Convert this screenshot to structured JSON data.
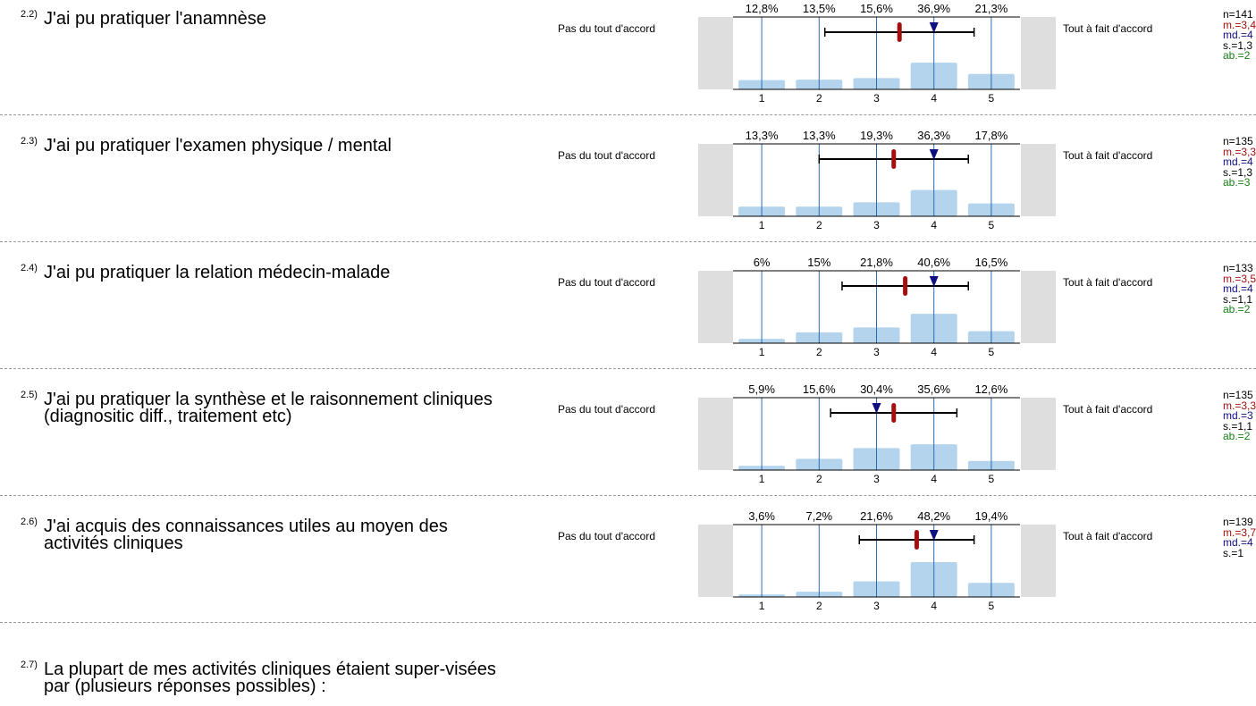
{
  "labels": {
    "left": "Pas du tout d'accord",
    "right": "Tout à fait d'accord"
  },
  "colors": {
    "bar": "#b4d4ee",
    "vline": "#2a6bb4",
    "mean": "#a30f0f",
    "median": "#0e0e7e",
    "abst": "#168016"
  },
  "chart_data": [
    {
      "type": "bar",
      "id": "2.2)",
      "title": "J'ai pu pratiquer l'anamnèse",
      "categories": [
        "1",
        "2",
        "3",
        "4",
        "5"
      ],
      "values": [
        12.8,
        13.5,
        15.6,
        36.9,
        21.3
      ],
      "value_labels": [
        "12,8%",
        "13,5%",
        "15,6%",
        "36,9%",
        "21,3%"
      ],
      "mean": 3.4,
      "median": 4,
      "sd": 1.3,
      "n": 141,
      "stats": {
        "n": "n=141",
        "m": "m.=3,4",
        "md": "md.=4",
        "s": "s.=1,3",
        "ab": "ab.=2"
      }
    },
    {
      "type": "bar",
      "id": "2.3)",
      "title": "J'ai pu pratiquer l'examen physique / mental",
      "categories": [
        "1",
        "2",
        "3",
        "4",
        "5"
      ],
      "values": [
        13.3,
        13.3,
        19.3,
        36.3,
        17.8
      ],
      "value_labels": [
        "13,3%",
        "13,3%",
        "19,3%",
        "36,3%",
        "17,8%"
      ],
      "mean": 3.3,
      "median": 4,
      "sd": 1.3,
      "n": 135,
      "stats": {
        "n": "n=135",
        "m": "m.=3,3",
        "md": "md.=4",
        "s": "s.=1,3",
        "ab": "ab.=3"
      }
    },
    {
      "type": "bar",
      "id": "2.4)",
      "title": "J'ai pu pratiquer la relation médecin-malade",
      "categories": [
        "1",
        "2",
        "3",
        "4",
        "5"
      ],
      "values": [
        6,
        15,
        21.8,
        40.6,
        16.5
      ],
      "value_labels": [
        "6%",
        "15%",
        "21,8%",
        "40,6%",
        "16,5%"
      ],
      "mean": 3.5,
      "median": 4,
      "sd": 1.1,
      "n": 133,
      "stats": {
        "n": "n=133",
        "m": "m.=3,5",
        "md": "md.=4",
        "s": "s.=1,1",
        "ab": "ab.=2"
      }
    },
    {
      "type": "bar",
      "id": "2.5)",
      "title": "J'ai pu pratiquer la synthèse et le raisonnement cliniques (diagnositic diff., traitement etc)",
      "categories": [
        "1",
        "2",
        "3",
        "4",
        "5"
      ],
      "values": [
        5.9,
        15.6,
        30.4,
        35.6,
        12.6
      ],
      "value_labels": [
        "5,9%",
        "15,6%",
        "30,4%",
        "35,6%",
        "12,6%"
      ],
      "mean": 3.3,
      "median": 3,
      "sd": 1.1,
      "n": 135,
      "stats": {
        "n": "n=135",
        "m": "m.=3,3",
        "md": "md.=3",
        "s": "s.=1,1",
        "ab": "ab.=2"
      }
    },
    {
      "type": "bar",
      "id": "2.6)",
      "title": "J'ai acquis des connaissances utiles au moyen des activités cliniques",
      "categories": [
        "1",
        "2",
        "3",
        "4",
        "5"
      ],
      "values": [
        3.6,
        7.2,
        21.6,
        48.2,
        19.4
      ],
      "value_labels": [
        "3,6%",
        "7,2%",
        "21,6%",
        "48,2%",
        "19,4%"
      ],
      "mean": 3.7,
      "median": 4,
      "sd": 1,
      "n": 139,
      "stats": {
        "n": "n=139",
        "m": "m.=3,7",
        "md": "md.=4",
        "s": "s.=1",
        "ab": ""
      }
    }
  ],
  "footer_question": {
    "id": "2.7)",
    "text": "La plupart de mes activités cliniques étaient super-visées par (plusieurs réponses possibles) :"
  }
}
